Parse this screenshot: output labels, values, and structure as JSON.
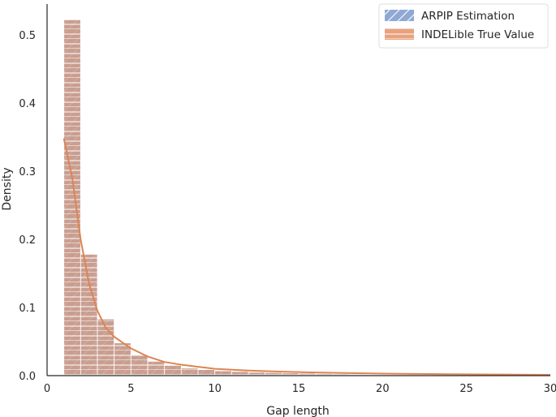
{
  "chart_data": {
    "type": "histogram",
    "xlabel": "Gap length",
    "ylabel": "Density",
    "xlim": [
      0,
      30
    ],
    "ylim": [
      0,
      0.545
    ],
    "xticks": [
      0,
      5,
      10,
      15,
      20,
      25,
      30
    ],
    "yticks": [
      0.0,
      0.1,
      0.2,
      0.3,
      0.4,
      0.5
    ],
    "bin_width": 1,
    "bins_start": [
      1,
      2,
      3,
      4,
      5,
      6,
      7,
      8,
      9,
      10,
      11,
      12,
      13,
      14,
      15,
      16,
      17,
      18,
      19,
      20,
      21,
      22,
      23,
      24,
      25,
      26,
      27,
      28,
      29
    ],
    "series": [
      {
        "name": "ARPIP Estimation",
        "color": "#8fa8d4",
        "values": [
          0.522,
          0.178,
          0.083,
          0.048,
          0.031,
          0.021,
          0.015,
          0.011,
          0.009,
          0.007,
          0.006,
          0.005,
          0.0045,
          0.004,
          0.0035,
          0.003,
          0.0027,
          0.0024,
          0.0021,
          0.0019,
          0.0017,
          0.0015,
          0.0014,
          0.0013,
          0.0012,
          0.0011,
          0.001,
          0.0009,
          0.0008
        ]
      },
      {
        "name": "INDELible True Value",
        "color": "#e8a27d",
        "line_color": "#dd8452",
        "values": [
          0.522,
          0.178,
          0.083,
          0.048,
          0.031,
          0.021,
          0.015,
          0.011,
          0.009,
          0.007,
          0.006,
          0.005,
          0.0045,
          0.004,
          0.0035,
          0.003,
          0.0027,
          0.0024,
          0.0021,
          0.0019,
          0.0017,
          0.0015,
          0.0014,
          0.0013,
          0.0012,
          0.0011,
          0.001,
          0.0009,
          0.0008
        ],
        "kde_x": [
          1,
          1.5,
          2,
          2.5,
          3,
          3.5,
          4,
          5,
          6,
          7,
          8,
          9,
          10,
          12,
          14,
          16,
          18,
          20,
          22,
          24,
          26,
          28,
          30
        ],
        "kde_y": [
          0.348,
          0.29,
          0.2,
          0.135,
          0.095,
          0.07,
          0.057,
          0.04,
          0.028,
          0.02,
          0.016,
          0.013,
          0.01,
          0.0075,
          0.0058,
          0.0046,
          0.0037,
          0.003,
          0.0025,
          0.0021,
          0.0018,
          0.0015,
          0.0012
        ]
      }
    ],
    "legend": {
      "position": "top-right",
      "entries": [
        "ARPIP Estimation",
        "INDELible True Value"
      ]
    },
    "grid": false
  }
}
